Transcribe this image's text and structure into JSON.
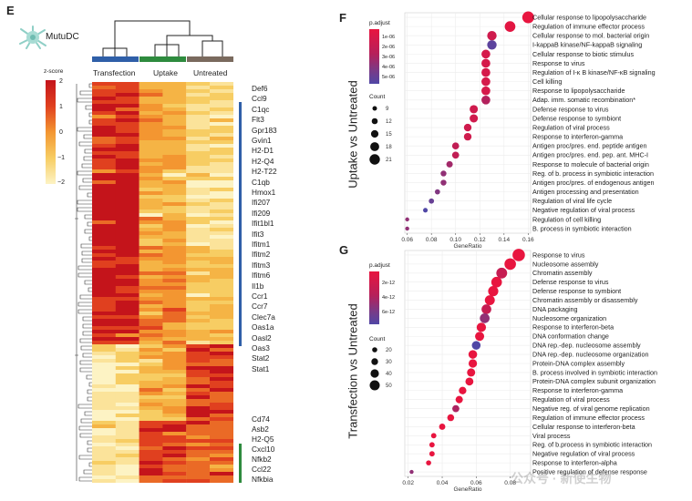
{
  "panels": {
    "E": {
      "label": "E",
      "cell_type": "MutuDC",
      "columns": [
        "Transfection",
        "Uptake",
        "Untreated"
      ],
      "colors": {
        "Transfection": "#2f5fa8",
        "Uptake": "#2e8b3e",
        "Untreated": "#7a6a5e"
      },
      "zscore_title": "z-score",
      "zscore_ticks": [
        "2",
        "1",
        "0",
        "−1",
        "−2"
      ],
      "genes": [
        "Def6",
        "Ccl9",
        "C1qc",
        "Flt3",
        "Gpr183",
        "Gvin1",
        "H2-D1",
        "H2-Q4",
        "H2-T22",
        "C1qb",
        "Hmox1",
        "Ifi207",
        "Ifi209",
        "Ifit1bl1",
        "Ifit3",
        "Ifitm1",
        "Ifitm2",
        "Ifitm3",
        "Ifitm6",
        "Il1b",
        "Ccr1",
        "Ccr7",
        "Clec7a",
        "Oas1a",
        "Oasl2",
        "Oas3",
        "Stat2",
        "Stat1",
        "Cd74",
        "Asb2",
        "H2-Q5",
        "Cxcl10",
        "Nfkb2",
        "Ccl22",
        "Nfkbia"
      ]
    },
    "F": {
      "label": "F",
      "ylabel": "Uptake vs Untreated",
      "xlabel": "GeneRatio",
      "padj_title": "p.adjust",
      "padj_ticks": [
        "1e-06",
        "2e-06",
        "3e-06",
        "4e-06",
        "5e-06"
      ],
      "count_title": "Count",
      "count_ticks": [
        "9",
        "12",
        "15",
        "18",
        "21"
      ]
    },
    "G": {
      "label": "G",
      "ylabel": "Transfection vs Untreated",
      "xlabel": "GeneRatio",
      "padj_title": "p.adjust",
      "padj_ticks": [
        "2e-12",
        "4e-12",
        "6e-12"
      ],
      "count_title": "Count",
      "count_ticks": [
        "20",
        "30",
        "40",
        "50"
      ]
    }
  },
  "watermark": "公众号 · 新使生物",
  "chart_data": [
    {
      "type": "scatter",
      "panel": "F",
      "xlabel": "GeneRatio",
      "ylabel": "Uptake vs Untreated",
      "xlim": [
        0.058,
        0.162
      ],
      "xticks": [
        "0.06",
        "0.08",
        "0.10",
        "0.12",
        "0.14",
        "0.16"
      ],
      "categories": [
        "Cellular response to lipopolysaccharide",
        "Regulation of immune effector process",
        "Cellular response to mol. bacterial origin",
        "I-kappaB kinase/NF-kappaB signaling",
        "Cellular response to biotic stimulus",
        "Response to virus",
        "Regulation of I-κ B kinase/NF-κB signaling",
        "Cell killing",
        "Response to lipopolysaccharide",
        "Adap. imm. somatic recombination*",
        "Defense response to virus",
        "Defense response to symbiont",
        "Regulation of viral process",
        "Response to interferon-gamma",
        "Antigen proc/pres. end. peptide antigen",
        "Antigen proc/pres. end. pep. ant. MHC-I",
        "Response to molecule of bacterial origin",
        "Reg. of b. process in symbiotic interaction",
        "Antigen proc/pres. of endogenous antigen",
        "Antigen processing and presentation",
        "Regulation of viral life cycle",
        "Negative regulation of viral process",
        "Regulation of cell killing",
        "B. process in symbiotic interaction"
      ],
      "x": [
        0.16,
        0.145,
        0.13,
        0.13,
        0.125,
        0.125,
        0.125,
        0.125,
        0.125,
        0.125,
        0.115,
        0.115,
        0.11,
        0.11,
        0.1,
        0.1,
        0.095,
        0.09,
        0.09,
        0.085,
        0.08,
        0.075,
        0.06,
        0.06
      ],
      "count": [
        22,
        20,
        18,
        18,
        17,
        17,
        17,
        17,
        17,
        17,
        16,
        16,
        15,
        15,
        14,
        14,
        13,
        12,
        12,
        11,
        11,
        10,
        9,
        9
      ],
      "padj": [
        1e-07,
        3e-07,
        1e-06,
        5e-06,
        8e-07,
        8e-07,
        8e-07,
        8e-07,
        8e-07,
        2e-06,
        1e-06,
        1e-06,
        1e-06,
        1e-06,
        1.5e-06,
        1.5e-06,
        2.5e-06,
        3e-06,
        3e-06,
        3.5e-06,
        4.5e-06,
        5.5e-06,
        3e-06,
        3e-06
      ]
    },
    {
      "type": "scatter",
      "panel": "G",
      "xlabel": "GeneRatio",
      "ylabel": "Transfection vs Untreated",
      "xlim": [
        0.018,
        0.092
      ],
      "xticks": [
        "0.02",
        "0.04",
        "0.06",
        "0.08"
      ],
      "categories": [
        "Response to virus",
        "Nucleosome assembly",
        "Chromatin assembly",
        "Defense response to virus",
        "Defense response to symbiont",
        "Chromatin assembly or disassembly",
        "DNA packaging",
        "Nucleosome organization",
        "Response to interferon-beta",
        "DNA conformation change",
        "DNA rep.-dep. nucleosome assembly",
        "DNA rep.-dep. nucleosome organization",
        "Protein-DNA complex assembly",
        "B. process involved in symbiotic interaction",
        "Protein-DNA complex subunit organization",
        "Response to interferon-gamma",
        "Regulation of viral process",
        "Negative reg. of viral genome replication",
        "Regulation of immune effector process",
        "Cellular response to interferon-beta",
        "Viral process",
        "Reg. of b.process in symbiotic interaction",
        "Negative regulation of viral process",
        "Response to interferon-alpha",
        "Positive regulation of defense response"
      ],
      "x": [
        0.085,
        0.08,
        0.075,
        0.072,
        0.07,
        0.068,
        0.066,
        0.065,
        0.063,
        0.062,
        0.06,
        0.058,
        0.058,
        0.057,
        0.056,
        0.052,
        0.05,
        0.048,
        0.045,
        0.04,
        0.035,
        0.034,
        0.034,
        0.032,
        0.022
      ],
      "count": [
        52,
        48,
        45,
        44,
        42,
        41,
        40,
        40,
        38,
        37,
        35,
        35,
        34,
        33,
        32,
        30,
        29,
        28,
        27,
        24,
        20,
        20,
        20,
        19,
        14
      ],
      "padj": [
        5e-13,
        5e-13,
        2e-12,
        5e-13,
        5e-13,
        5e-13,
        2e-12,
        4e-12,
        5e-13,
        5e-13,
        7e-12,
        5e-13,
        5e-13,
        5e-13,
        5e-13,
        5e-13,
        5e-13,
        3e-12,
        5e-13,
        5e-13,
        5e-13,
        5e-13,
        5e-13,
        5e-13,
        4e-12
      ]
    }
  ]
}
